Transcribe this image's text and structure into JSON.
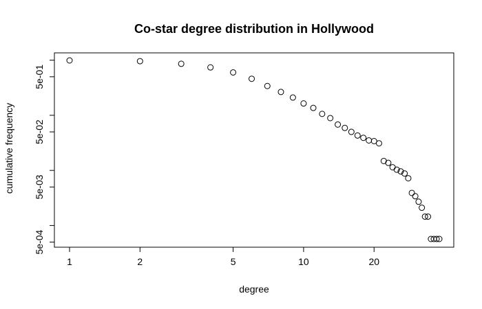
{
  "chart_data": {
    "type": "scatter",
    "title": "Co-star degree distribution in Hollywood",
    "xlabel": "degree",
    "ylabel": "cumulative frequency",
    "x_scale": "log",
    "y_scale": "log",
    "xlim": [
      0.95,
      42
    ],
    "ylim": [
      0.00045,
      1.2
    ],
    "grid": false,
    "x_ticks": [
      {
        "value": 1,
        "label": "1"
      },
      {
        "value": 2,
        "label": "2"
      },
      {
        "value": 5,
        "label": "5"
      },
      {
        "value": 10,
        "label": "10"
      },
      {
        "value": 20,
        "label": "20"
      }
    ],
    "y_ticks": [
      {
        "value": 0.0005,
        "label": "5e-04"
      },
      {
        "value": 0.001,
        "label": ""
      },
      {
        "value": 0.005,
        "label": "5e-03"
      },
      {
        "value": 0.01,
        "label": ""
      },
      {
        "value": 0.05,
        "label": "5e-02"
      },
      {
        "value": 0.1,
        "label": ""
      },
      {
        "value": 0.5,
        "label": "5e-01"
      },
      {
        "value": 1,
        "label": ""
      }
    ],
    "points": [
      {
        "x": 1,
        "y": 0.99
      },
      {
        "x": 2,
        "y": 0.96
      },
      {
        "x": 3,
        "y": 0.86
      },
      {
        "x": 4,
        "y": 0.74
      },
      {
        "x": 5,
        "y": 0.6
      },
      {
        "x": 6,
        "y": 0.46
      },
      {
        "x": 7,
        "y": 0.34
      },
      {
        "x": 8,
        "y": 0.265
      },
      {
        "x": 9,
        "y": 0.21
      },
      {
        "x": 10,
        "y": 0.164
      },
      {
        "x": 11,
        "y": 0.136
      },
      {
        "x": 12,
        "y": 0.106
      },
      {
        "x": 13,
        "y": 0.089
      },
      {
        "x": 14,
        "y": 0.068
      },
      {
        "x": 15,
        "y": 0.059
      },
      {
        "x": 16,
        "y": 0.05
      },
      {
        "x": 17,
        "y": 0.043
      },
      {
        "x": 18,
        "y": 0.039
      },
      {
        "x": 19,
        "y": 0.035
      },
      {
        "x": 20,
        "y": 0.034
      },
      {
        "x": 21,
        "y": 0.031
      },
      {
        "x": 22,
        "y": 0.0148
      },
      {
        "x": 23,
        "y": 0.0137
      },
      {
        "x": 24,
        "y": 0.0114
      },
      {
        "x": 25,
        "y": 0.0103
      },
      {
        "x": 26,
        "y": 0.0096
      },
      {
        "x": 27,
        "y": 0.0088
      },
      {
        "x": 28,
        "y": 0.0072
      },
      {
        "x": 29,
        "y": 0.0039
      },
      {
        "x": 30,
        "y": 0.0034
      },
      {
        "x": 31,
        "y": 0.0027
      },
      {
        "x": 32,
        "y": 0.0021
      },
      {
        "x": 33,
        "y": 0.00145
      },
      {
        "x": 34,
        "y": 0.00145
      },
      {
        "x": 35,
        "y": 0.00057
      },
      {
        "x": 36,
        "y": 0.00057
      },
      {
        "x": 37,
        "y": 0.00057
      },
      {
        "x": 38,
        "y": 0.00057
      }
    ]
  }
}
